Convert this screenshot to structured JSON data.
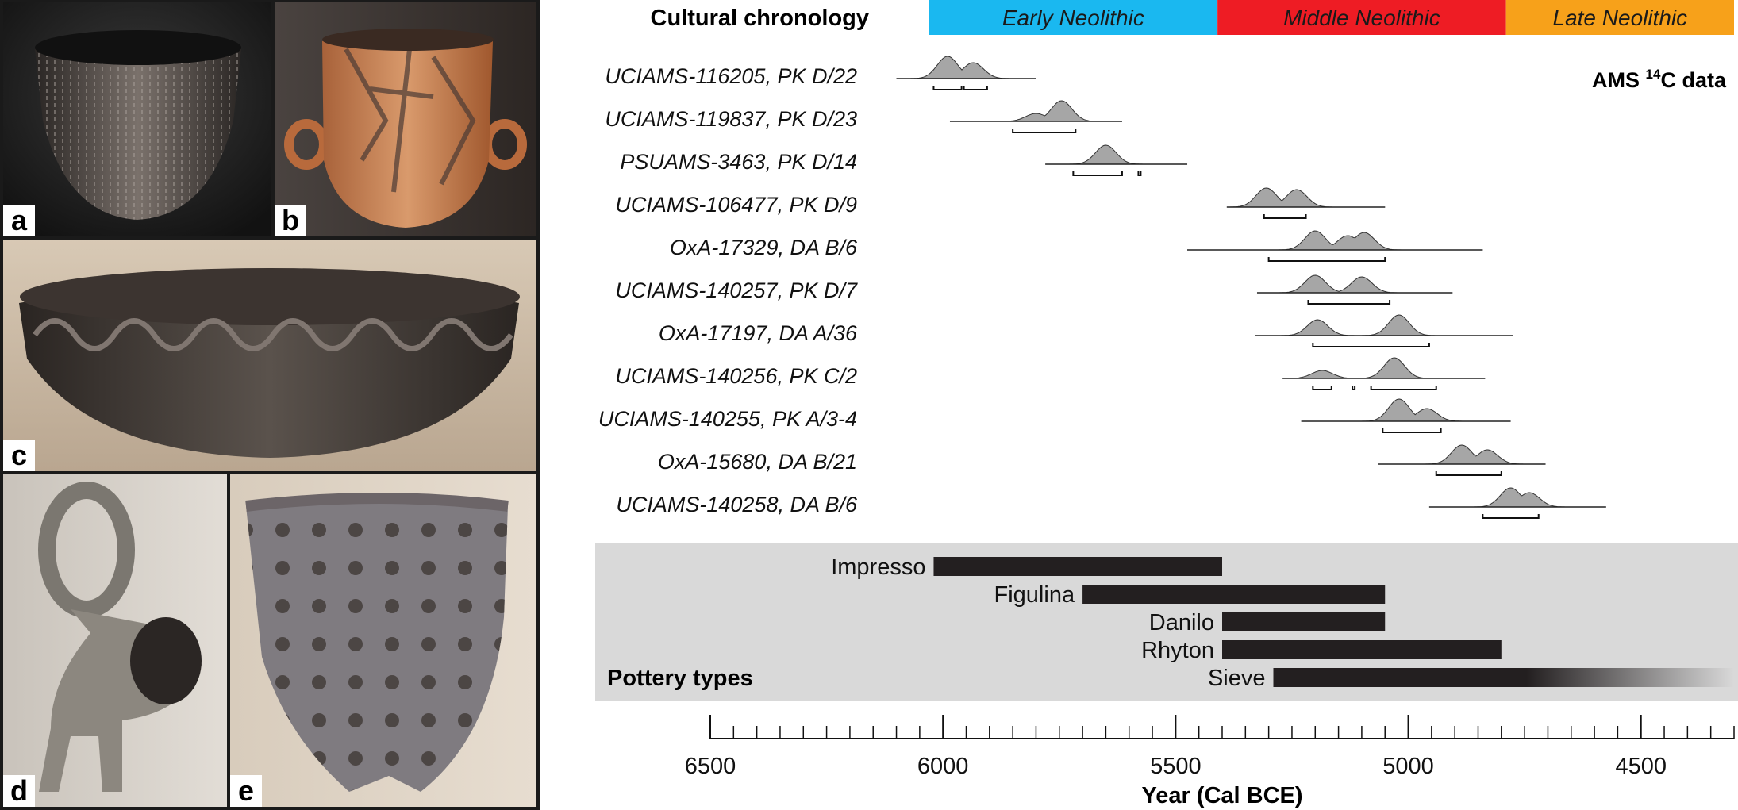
{
  "photos": [
    {
      "label": "a"
    },
    {
      "label": "b"
    },
    {
      "label": "c"
    },
    {
      "label": "d"
    },
    {
      "label": "e"
    }
  ],
  "chart_data": {
    "type": "range",
    "title": "",
    "xlabel": "Year (Cal BCE)",
    "xlim": [
      6500,
      4300
    ],
    "x_ticks": [
      6500,
      6000,
      5500,
      5000,
      4500
    ],
    "minor_tick_step": 50,
    "chronology": {
      "title": "Cultural chronology",
      "periods": [
        {
          "name": "Early Neolithic",
          "start": 6030,
          "end": 5410,
          "color": "#1ab8f0"
        },
        {
          "name": "Middle Neolithic",
          "start": 5410,
          "end": 4790,
          "color": "#ee1c24"
        },
        {
          "name": "Late Neolithic",
          "start": 4790,
          "end": 4300,
          "color": "#f7a11a"
        }
      ]
    },
    "ams": {
      "title_prefix": "AMS ",
      "title_sup": "14",
      "title_suffix": "C data",
      "samples": [
        {
          "label": "UCIAMS-116205, PK D/22",
          "line": [
            6100,
            5800
          ],
          "peaks": [
            [
              5990,
              28
            ],
            [
              5935,
              20
            ]
          ],
          "ranges": [
            [
              6020,
              5960
            ],
            [
              5955,
              5905
            ]
          ]
        },
        {
          "label": "UCIAMS-119837, PK D/23",
          "line": [
            5985,
            5615
          ],
          "peaks": [
            [
              5745,
              26
            ],
            [
              5800,
              10
            ]
          ],
          "ranges": [
            [
              5850,
              5715
            ]
          ]
        },
        {
          "label": "PSUAMS-3463, PK D/14",
          "line": [
            5780,
            5475
          ],
          "peaks": [
            [
              5650,
              24
            ]
          ],
          "ranges": [
            [
              5720,
              5615
            ],
            [
              5580,
              5575
            ]
          ]
        },
        {
          "label": "UCIAMS-106477, PK D/9",
          "line": [
            5390,
            5050
          ],
          "peaks": [
            [
              5305,
              24
            ],
            [
              5240,
              22
            ]
          ],
          "ranges": [
            [
              5310,
              5220
            ]
          ]
        },
        {
          "label": "OxA-17329, DA B/6",
          "line": [
            5475,
            4840
          ],
          "peaks": [
            [
              5200,
              24
            ],
            [
              5095,
              22
            ],
            [
              5130,
              18
            ]
          ],
          "ranges": [
            [
              5300,
              5050
            ]
          ]
        },
        {
          "label": "UCIAMS-140257, PK D/7",
          "line": [
            5325,
            4905
          ],
          "peaks": [
            [
              5200,
              22
            ],
            [
              5100,
              20
            ]
          ],
          "ranges": [
            [
              5215,
              5040
            ]
          ]
        },
        {
          "label": "OxA-17197, DA A/36",
          "line": [
            5330,
            4775
          ],
          "peaks": [
            [
              5195,
              20
            ],
            [
              5020,
              26
            ]
          ],
          "ranges": [
            [
              5205,
              4955
            ]
          ]
        },
        {
          "label": "UCIAMS-140256, PK C/2",
          "line": [
            5270,
            4835
          ],
          "peaks": [
            [
              5185,
              10
            ],
            [
              5030,
              26
            ]
          ],
          "ranges": [
            [
              5205,
              5165
            ],
            [
              5120,
              5115
            ],
            [
              5080,
              4940
            ]
          ]
        },
        {
          "label": "UCIAMS-140255, PK A/3-4",
          "line": [
            5230,
            4780
          ],
          "peaks": [
            [
              5020,
              28
            ],
            [
              4960,
              16
            ]
          ],
          "ranges": [
            [
              5055,
              4930
            ]
          ]
        },
        {
          "label": "OxA-15680, DA B/21",
          "line": [
            5065,
            4705
          ],
          "peaks": [
            [
              4885,
              24
            ],
            [
              4830,
              18
            ]
          ],
          "ranges": [
            [
              4940,
              4800
            ]
          ]
        },
        {
          "label": "UCIAMS-140258, DA B/6",
          "line": [
            4955,
            4575
          ],
          "peaks": [
            [
              4780,
              24
            ],
            [
              4740,
              18
            ]
          ],
          "ranges": [
            [
              4840,
              4720
            ]
          ]
        }
      ]
    },
    "pottery": {
      "title": "Pottery types",
      "types": [
        {
          "name": "Impresso",
          "start": 6020,
          "end": 5400,
          "fade": false
        },
        {
          "name": "Figulina",
          "start": 5700,
          "end": 5050,
          "fade": false
        },
        {
          "name": "Danilo",
          "start": 5400,
          "end": 5050,
          "fade": false
        },
        {
          "name": "Rhyton",
          "start": 5400,
          "end": 4800,
          "fade": false
        },
        {
          "name": "Sieve",
          "start": 5290,
          "end": 4300,
          "fade": true
        }
      ]
    }
  }
}
